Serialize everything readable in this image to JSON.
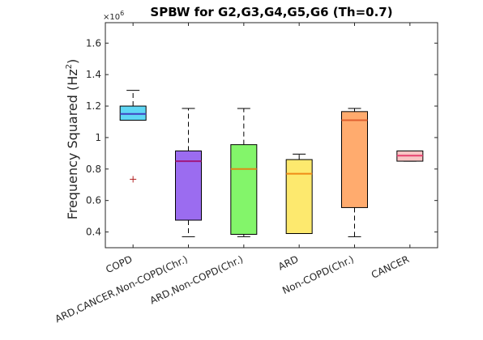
{
  "chart_data": {
    "type": "box",
    "title": "SPBW for G2,G3,G4,G5,G6 (Th=0.7)",
    "xlabel": "",
    "ylabel_main": "Frequency Squared (Hz",
    "ylabel_sup": "2",
    "ylabel_close": ")",
    "y_exponent_prefix": "×10",
    "y_exponent_power": "6",
    "ylim": [
      0.3,
      1.73
    ],
    "yticks": [
      0.4,
      0.6,
      0.8,
      1.0,
      1.2,
      1.4,
      1.6
    ],
    "ytick_labels": [
      "0.4",
      "0.6",
      "0.8",
      "1",
      "1.2",
      "1.4",
      "1.6"
    ],
    "grid": false,
    "categories": [
      "COPD",
      "ARD,CANCER,Non-COPD(Chr.)",
      "ARD,Non-COPD(Chr.)",
      "ARD",
      "Non-COPD(Chr.)",
      "CANCER"
    ],
    "boxes": [
      {
        "whisker_low": 1.11,
        "q1": 1.11,
        "median": 1.15,
        "q3": 1.2,
        "whisker_high": 1.3,
        "outliers": [
          0.735
        ],
        "fill": "#5fd7f5",
        "median_color": "#4040c0"
      },
      {
        "whisker_low": 0.37,
        "q1": 0.475,
        "median": 0.85,
        "q3": 0.915,
        "whisker_high": 1.185,
        "outliers": [],
        "fill": "#9b6cf0",
        "median_color": "#a0177e"
      },
      {
        "whisker_low": 0.37,
        "q1": 0.385,
        "median": 0.8,
        "q3": 0.955,
        "whisker_high": 1.185,
        "outliers": [],
        "fill": "#83f56a",
        "median_color": "#e08a16"
      },
      {
        "whisker_low": 0.39,
        "q1": 0.39,
        "median": 0.77,
        "q3": 0.86,
        "whisker_high": 0.895,
        "outliers": [],
        "fill": "#fde96e",
        "median_color": "#ef8b16"
      },
      {
        "whisker_low": 0.37,
        "q1": 0.555,
        "median": 1.11,
        "q3": 1.165,
        "whisker_high": 1.185,
        "outliers": [],
        "fill": "#ffab6e",
        "median_color": "#e06030"
      },
      {
        "whisker_low": 0.85,
        "q1": 0.85,
        "median": 0.885,
        "q3": 0.915,
        "whisker_high": 0.915,
        "outliers": [],
        "fill": "#f8c4c4",
        "median_color": "#e84070"
      }
    ],
    "outlier_color": "#b22222"
  }
}
